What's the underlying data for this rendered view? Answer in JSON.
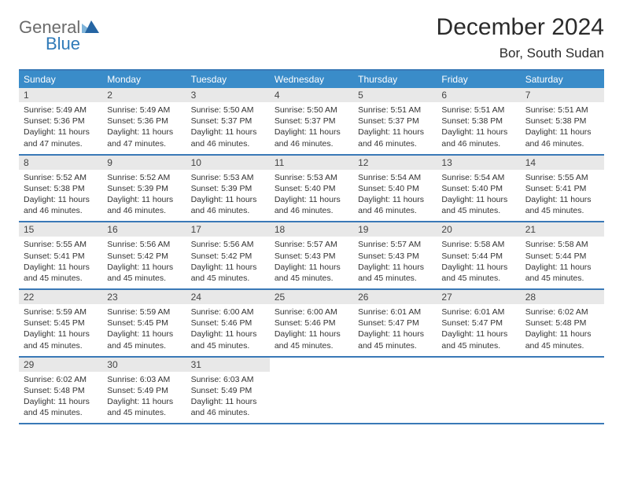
{
  "logo": {
    "word1": "General",
    "word2": "Blue"
  },
  "colors": {
    "header_bar": "#3a8cc9",
    "row_divider": "#3a79b7",
    "daynum_bg": "#e8e8e8",
    "logo_gray": "#6b6b6b",
    "logo_blue": "#2f7ab8",
    "tri_light": "#7fb4da",
    "tri_dark": "#2565a3"
  },
  "title": "December 2024",
  "location": "Bor, South Sudan",
  "day_headers": [
    "Sunday",
    "Monday",
    "Tuesday",
    "Wednesday",
    "Thursday",
    "Friday",
    "Saturday"
  ],
  "weeks": [
    [
      {
        "n": "1",
        "sr": "Sunrise: 5:49 AM",
        "ss": "Sunset: 5:36 PM",
        "dl": "Daylight: 11 hours and 47 minutes."
      },
      {
        "n": "2",
        "sr": "Sunrise: 5:49 AM",
        "ss": "Sunset: 5:36 PM",
        "dl": "Daylight: 11 hours and 47 minutes."
      },
      {
        "n": "3",
        "sr": "Sunrise: 5:50 AM",
        "ss": "Sunset: 5:37 PM",
        "dl": "Daylight: 11 hours and 46 minutes."
      },
      {
        "n": "4",
        "sr": "Sunrise: 5:50 AM",
        "ss": "Sunset: 5:37 PM",
        "dl": "Daylight: 11 hours and 46 minutes."
      },
      {
        "n": "5",
        "sr": "Sunrise: 5:51 AM",
        "ss": "Sunset: 5:37 PM",
        "dl": "Daylight: 11 hours and 46 minutes."
      },
      {
        "n": "6",
        "sr": "Sunrise: 5:51 AM",
        "ss": "Sunset: 5:38 PM",
        "dl": "Daylight: 11 hours and 46 minutes."
      },
      {
        "n": "7",
        "sr": "Sunrise: 5:51 AM",
        "ss": "Sunset: 5:38 PM",
        "dl": "Daylight: 11 hours and 46 minutes."
      }
    ],
    [
      {
        "n": "8",
        "sr": "Sunrise: 5:52 AM",
        "ss": "Sunset: 5:38 PM",
        "dl": "Daylight: 11 hours and 46 minutes."
      },
      {
        "n": "9",
        "sr": "Sunrise: 5:52 AM",
        "ss": "Sunset: 5:39 PM",
        "dl": "Daylight: 11 hours and 46 minutes."
      },
      {
        "n": "10",
        "sr": "Sunrise: 5:53 AM",
        "ss": "Sunset: 5:39 PM",
        "dl": "Daylight: 11 hours and 46 minutes."
      },
      {
        "n": "11",
        "sr": "Sunrise: 5:53 AM",
        "ss": "Sunset: 5:40 PM",
        "dl": "Daylight: 11 hours and 46 minutes."
      },
      {
        "n": "12",
        "sr": "Sunrise: 5:54 AM",
        "ss": "Sunset: 5:40 PM",
        "dl": "Daylight: 11 hours and 46 minutes."
      },
      {
        "n": "13",
        "sr": "Sunrise: 5:54 AM",
        "ss": "Sunset: 5:40 PM",
        "dl": "Daylight: 11 hours and 45 minutes."
      },
      {
        "n": "14",
        "sr": "Sunrise: 5:55 AM",
        "ss": "Sunset: 5:41 PM",
        "dl": "Daylight: 11 hours and 45 minutes."
      }
    ],
    [
      {
        "n": "15",
        "sr": "Sunrise: 5:55 AM",
        "ss": "Sunset: 5:41 PM",
        "dl": "Daylight: 11 hours and 45 minutes."
      },
      {
        "n": "16",
        "sr": "Sunrise: 5:56 AM",
        "ss": "Sunset: 5:42 PM",
        "dl": "Daylight: 11 hours and 45 minutes."
      },
      {
        "n": "17",
        "sr": "Sunrise: 5:56 AM",
        "ss": "Sunset: 5:42 PM",
        "dl": "Daylight: 11 hours and 45 minutes."
      },
      {
        "n": "18",
        "sr": "Sunrise: 5:57 AM",
        "ss": "Sunset: 5:43 PM",
        "dl": "Daylight: 11 hours and 45 minutes."
      },
      {
        "n": "19",
        "sr": "Sunrise: 5:57 AM",
        "ss": "Sunset: 5:43 PM",
        "dl": "Daylight: 11 hours and 45 minutes."
      },
      {
        "n": "20",
        "sr": "Sunrise: 5:58 AM",
        "ss": "Sunset: 5:44 PM",
        "dl": "Daylight: 11 hours and 45 minutes."
      },
      {
        "n": "21",
        "sr": "Sunrise: 5:58 AM",
        "ss": "Sunset: 5:44 PM",
        "dl": "Daylight: 11 hours and 45 minutes."
      }
    ],
    [
      {
        "n": "22",
        "sr": "Sunrise: 5:59 AM",
        "ss": "Sunset: 5:45 PM",
        "dl": "Daylight: 11 hours and 45 minutes."
      },
      {
        "n": "23",
        "sr": "Sunrise: 5:59 AM",
        "ss": "Sunset: 5:45 PM",
        "dl": "Daylight: 11 hours and 45 minutes."
      },
      {
        "n": "24",
        "sr": "Sunrise: 6:00 AM",
        "ss": "Sunset: 5:46 PM",
        "dl": "Daylight: 11 hours and 45 minutes."
      },
      {
        "n": "25",
        "sr": "Sunrise: 6:00 AM",
        "ss": "Sunset: 5:46 PM",
        "dl": "Daylight: 11 hours and 45 minutes."
      },
      {
        "n": "26",
        "sr": "Sunrise: 6:01 AM",
        "ss": "Sunset: 5:47 PM",
        "dl": "Daylight: 11 hours and 45 minutes."
      },
      {
        "n": "27",
        "sr": "Sunrise: 6:01 AM",
        "ss": "Sunset: 5:47 PM",
        "dl": "Daylight: 11 hours and 45 minutes."
      },
      {
        "n": "28",
        "sr": "Sunrise: 6:02 AM",
        "ss": "Sunset: 5:48 PM",
        "dl": "Daylight: 11 hours and 45 minutes."
      }
    ],
    [
      {
        "n": "29",
        "sr": "Sunrise: 6:02 AM",
        "ss": "Sunset: 5:48 PM",
        "dl": "Daylight: 11 hours and 45 minutes."
      },
      {
        "n": "30",
        "sr": "Sunrise: 6:03 AM",
        "ss": "Sunset: 5:49 PM",
        "dl": "Daylight: 11 hours and 45 minutes."
      },
      {
        "n": "31",
        "sr": "Sunrise: 6:03 AM",
        "ss": "Sunset: 5:49 PM",
        "dl": "Daylight: 11 hours and 46 minutes."
      },
      null,
      null,
      null,
      null
    ]
  ]
}
